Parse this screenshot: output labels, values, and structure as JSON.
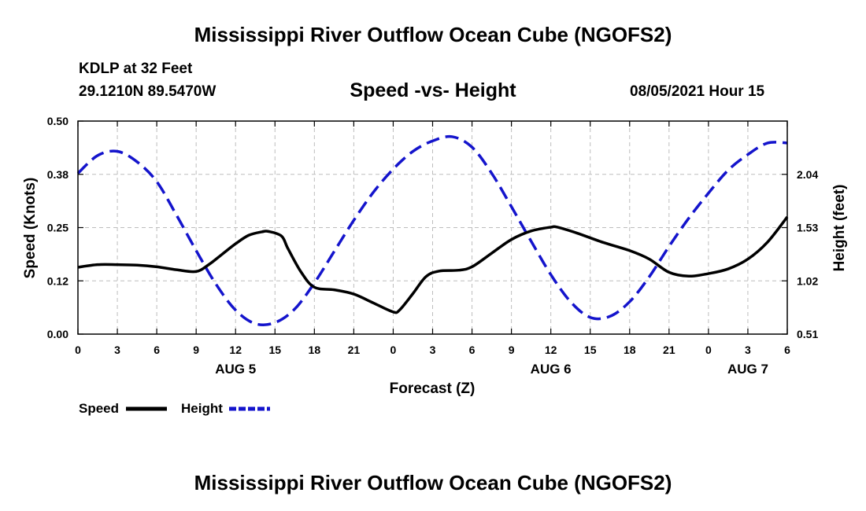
{
  "title": "Mississippi River Outflow Ocean Cube (NGOFS2)",
  "footer_title": "Mississippi River Outflow Ocean Cube (NGOFS2)",
  "station": "KDLP at 32 Feet",
  "coords": "29.1210N  89.5470W",
  "subtitle": "Speed -vs- Height",
  "datetime": "08/05/2021 Hour 15",
  "colors": {
    "speed": "#000000",
    "height": "#1414cc",
    "grid": "#bdbdbd"
  },
  "chart_data": {
    "type": "line",
    "title": "Speed -vs- Height",
    "xlabel": "Forecast (Z)",
    "ylabel": "Speed (Knots)",
    "y2label": "Height (feet)",
    "xlim": [
      0,
      54
    ],
    "ylim": [
      0,
      0.5
    ],
    "y2lim": [
      0.51,
      2.55
    ],
    "grid": true,
    "legend_position": "bottom-left",
    "x_ticks": [
      0,
      3,
      6,
      9,
      12,
      15,
      18,
      21,
      24,
      27,
      30,
      33,
      36,
      39,
      42,
      45,
      48,
      51,
      54
    ],
    "x_tick_labels": [
      "0",
      "3",
      "6",
      "9",
      "12",
      "15",
      "18",
      "21",
      "0",
      "3",
      "6",
      "9",
      "12",
      "15",
      "18",
      "21",
      "0",
      "3",
      "6"
    ],
    "y_ticks": [
      0,
      0.125,
      0.25,
      0.375,
      0.5
    ],
    "y_tick_labels": [
      "0.00",
      "0.12",
      "0.25",
      "0.38",
      "0.50"
    ],
    "y2_ticks": [
      0.51,
      1.02,
      1.53,
      2.04
    ],
    "y2_tick_labels": [
      "0.51",
      "1.02",
      "1.53",
      "2.04"
    ],
    "date_labels": [
      {
        "x": 12,
        "label": "AUG 5"
      },
      {
        "x": 36,
        "label": "AUG 6"
      },
      {
        "x": 51,
        "label": "AUG 7"
      }
    ],
    "series": [
      {
        "name": "Speed",
        "axis": "left",
        "style": "solid",
        "x": [
          0,
          1.5,
          3,
          4.5,
          6,
          7.5,
          9,
          10,
          11,
          12,
          13,
          14,
          14.5,
          15.5,
          16,
          17,
          18,
          19.5,
          21,
          22.5,
          24,
          24.5,
          25.5,
          26.5,
          27.5,
          29,
          30,
          31.5,
          33,
          34.5,
          36,
          36.5,
          38,
          40,
          42,
          43.5,
          45,
          46.5,
          48,
          49.5,
          51,
          52.5,
          54
        ],
        "y": [
          0.157,
          0.163,
          0.163,
          0.162,
          0.158,
          0.151,
          0.147,
          0.164,
          0.188,
          0.212,
          0.232,
          0.24,
          0.241,
          0.23,
          0.2,
          0.145,
          0.11,
          0.104,
          0.094,
          0.073,
          0.052,
          0.057,
          0.095,
          0.135,
          0.148,
          0.15,
          0.158,
          0.19,
          0.222,
          0.242,
          0.251,
          0.251,
          0.237,
          0.215,
          0.196,
          0.176,
          0.145,
          0.136,
          0.142,
          0.153,
          0.176,
          0.216,
          0.275
        ]
      },
      {
        "name": "Height",
        "axis": "right",
        "style": "dashed",
        "x": [
          0,
          1.5,
          3,
          4.5,
          6,
          7.5,
          9,
          10.5,
          12,
          13.5,
          15,
          16.5,
          18,
          19.5,
          21,
          22.5,
          24,
          25.5,
          27,
          28.5,
          30,
          31.5,
          33,
          34.5,
          36,
          37.5,
          39,
          40.5,
          42,
          43.5,
          45,
          46.5,
          48,
          49.5,
          51,
          52.5,
          54
        ],
        "y": [
          2.05,
          2.22,
          2.26,
          2.16,
          1.97,
          1.65,
          1.31,
          0.99,
          0.74,
          0.61,
          0.62,
          0.75,
          1.0,
          1.3,
          1.6,
          1.87,
          2.09,
          2.26,
          2.36,
          2.4,
          2.3,
          2.05,
          1.73,
          1.4,
          1.08,
          0.82,
          0.67,
          0.68,
          0.82,
          1.06,
          1.35,
          1.62,
          1.86,
          2.08,
          2.23,
          2.34,
          2.34
        ]
      }
    ]
  }
}
